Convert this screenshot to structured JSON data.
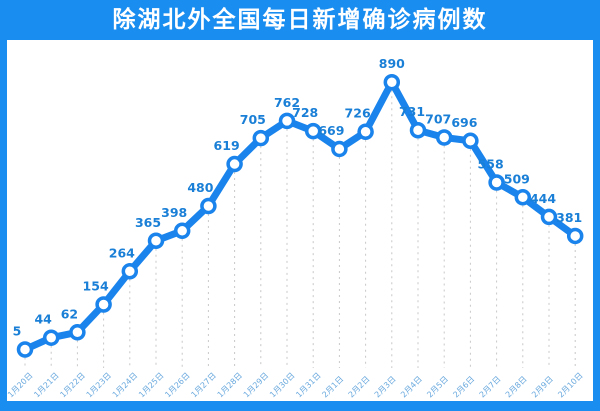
{
  "header": {
    "title": "除湖北外全国每日新增确诊病例数"
  },
  "colors": {
    "frame": "#1a8ef0",
    "line": "#1a84ec",
    "label": "#1a7fd6",
    "axis_label": "#6aa9de",
    "grid": "#c8c8c8"
  },
  "chart_data": {
    "type": "line",
    "title": "除湖北外全国每日新增确诊病例数",
    "xlabel": "",
    "ylabel": "",
    "grid": "vertical dashed drop-lines",
    "legend": "none",
    "categories": [
      "1月20日",
      "1月21日",
      "1月22日",
      "1月23日",
      "1月24日",
      "1月25日",
      "1月26日",
      "1月27日",
      "1月28日",
      "1月29日",
      "1月30日",
      "1月31日",
      "2月1日",
      "2月2日",
      "2月3日",
      "2月4日",
      "2月5日",
      "2月6日",
      "2月7日",
      "2月8日",
      "2月9日",
      "2月10日"
    ],
    "values": [
      5,
      44,
      62,
      154,
      264,
      365,
      398,
      480,
      619,
      705,
      762,
      728,
      669,
      726,
      890,
      731,
      707,
      696,
      558,
      509,
      444,
      381
    ],
    "ylim": [
      0,
      950
    ]
  }
}
